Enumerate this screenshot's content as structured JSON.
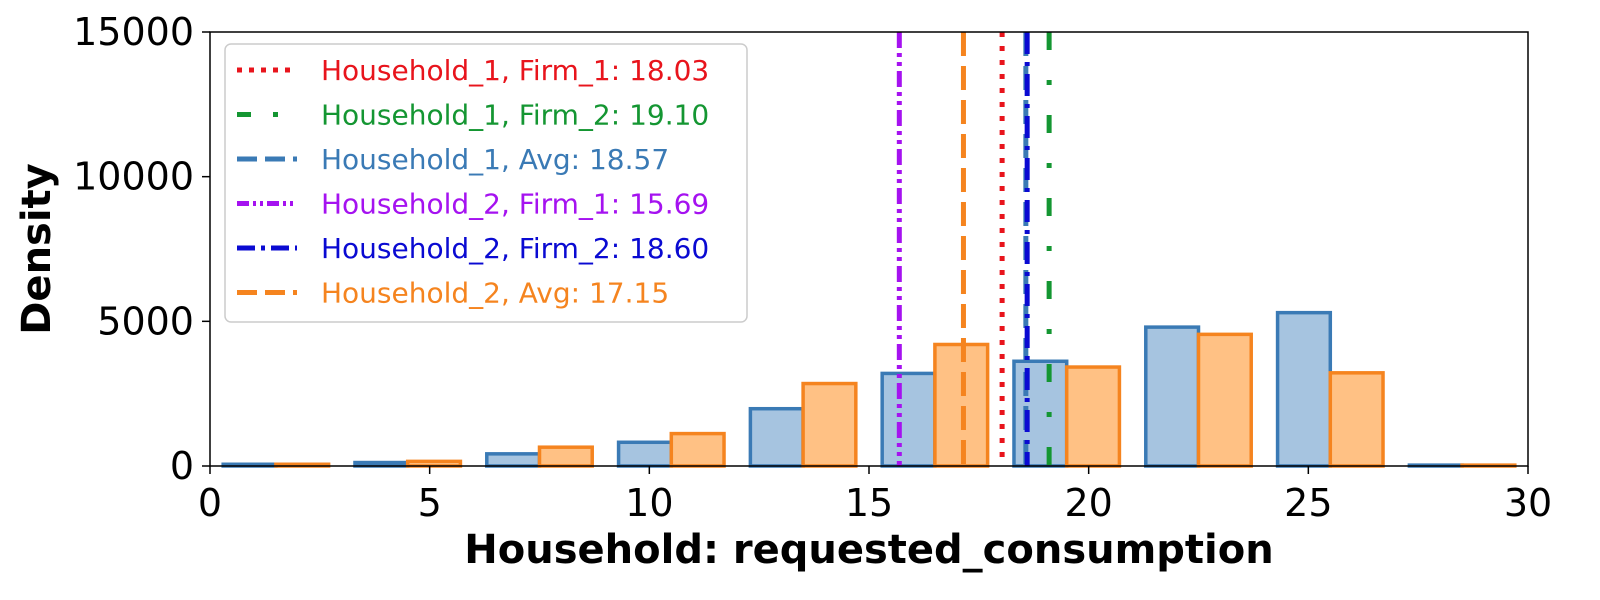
{
  "chart_data": {
    "type": "bar",
    "title": "",
    "xlabel": "Household: requested_consumption",
    "ylabel": "Density",
    "xlim": [
      0,
      30
    ],
    "ylim": [
      0,
      15000
    ],
    "xticks": [
      {
        "value": 0,
        "label": "0"
      },
      {
        "value": 5,
        "label": "5"
      },
      {
        "value": 10,
        "label": "10"
      },
      {
        "value": 15,
        "label": "15"
      },
      {
        "value": 20,
        "label": "20"
      },
      {
        "value": 25,
        "label": "25"
      },
      {
        "value": 30,
        "label": "30"
      }
    ],
    "yticks": [
      {
        "value": 0,
        "label": "0"
      },
      {
        "value": 5000,
        "label": "5000"
      },
      {
        "value": 10000,
        "label": "10000"
      },
      {
        "value": 15000,
        "label": "15000"
      }
    ],
    "grid": false,
    "legend_position": "top-left",
    "series": [
      {
        "fill": "#a6c4e0",
        "edge": "#3a7ab5",
        "bins": [
          {
            "x0": 0.3,
            "x1": 1.5,
            "value": 60
          },
          {
            "x0": 3.3,
            "x1": 4.5,
            "value": 120
          },
          {
            "x0": 6.3,
            "x1": 7.5,
            "value": 420
          },
          {
            "x0": 9.3,
            "x1": 10.5,
            "value": 820
          },
          {
            "x0": 12.3,
            "x1": 13.5,
            "value": 1980
          },
          {
            "x0": 15.3,
            "x1": 16.5,
            "value": 3200
          },
          {
            "x0": 18.3,
            "x1": 19.5,
            "value": 3620
          },
          {
            "x0": 21.3,
            "x1": 22.5,
            "value": 4800
          },
          {
            "x0": 24.3,
            "x1": 25.5,
            "value": 5300
          },
          {
            "x0": 27.3,
            "x1": 28.5,
            "value": 30
          }
        ]
      },
      {
        "fill": "#ffc184",
        "edge": "#f5841f",
        "bins": [
          {
            "x0": 1.5,
            "x1": 2.7,
            "value": 60
          },
          {
            "x0": 4.5,
            "x1": 5.7,
            "value": 160
          },
          {
            "x0": 7.5,
            "x1": 8.7,
            "value": 650
          },
          {
            "x0": 10.5,
            "x1": 11.7,
            "value": 1120
          },
          {
            "x0": 13.5,
            "x1": 14.7,
            "value": 2850
          },
          {
            "x0": 16.5,
            "x1": 17.7,
            "value": 4200
          },
          {
            "x0": 19.5,
            "x1": 20.7,
            "value": 3420
          },
          {
            "x0": 22.5,
            "x1": 23.7,
            "value": 4550
          },
          {
            "x0": 25.5,
            "x1": 26.7,
            "value": 3220
          },
          {
            "x0": 28.5,
            "x1": 29.7,
            "value": 30
          }
        ]
      }
    ],
    "vlines": [
      {
        "label": "Household_1, Firm_1: 18.03",
        "x": 18.03,
        "color": "#e8141c",
        "dash": "dotted"
      },
      {
        "label": "Household_1, Firm_2: 19.10",
        "x": 19.1,
        "color": "#149632",
        "dash": "dash-dot-sparse"
      },
      {
        "label": "Household_1, Avg: 18.57",
        "x": 18.57,
        "color": "#3a7ab5",
        "dash": "dashed"
      },
      {
        "label": "Household_2, Firm_1: 15.69",
        "x": 15.69,
        "color": "#a512f0",
        "dash": "dash-dot-dot"
      },
      {
        "label": "Household_2, Firm_2: 18.60",
        "x": 18.6,
        "color": "#0a0ad2",
        "dash": "dash-dot"
      },
      {
        "label": "Household_2, Avg: 17.15",
        "x": 17.15,
        "color": "#f5841f",
        "dash": "dashed"
      }
    ]
  }
}
